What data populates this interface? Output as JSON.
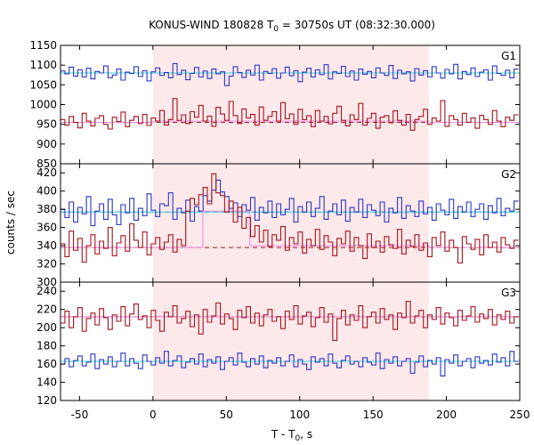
{
  "chart_data": {
    "type": "line",
    "title": {
      "main": "KONUS-WIND 180828 T",
      "sub": "0",
      "rest": " = 30750s UT (08:32:30.000)"
    },
    "xlabel": {
      "main": "T - T",
      "sub": "0",
      "rest": ", s"
    },
    "ylabel": "counts / sec",
    "xlim": [
      -63,
      250
    ],
    "x_ticks": [
      -50,
      0,
      50,
      100,
      150,
      200,
      250
    ],
    "shaded_interval": [
      0,
      188
    ],
    "colors": {
      "shade": "#fde8ea",
      "blue_series": "#2b36c4",
      "red_series": "#a5131c",
      "blue_background": "#40d9d9",
      "red_background": "#e88be0"
    },
    "panels": [
      {
        "label": "G1",
        "ylim": [
          850,
          1150
        ],
        "y_ticks": [
          850,
          900,
          950,
          1000,
          1050,
          1100,
          1150
        ],
        "series": [
          {
            "color": "blue",
            "background_level": 1080,
            "t_start": -63,
            "bin_width": 2.944,
            "values": [
              1085,
              1078,
              1095,
              1072,
              1088,
              1070,
              1092,
              1065,
              1084,
              1080,
              1098,
              1068,
              1075,
              1090,
              1062,
              1082,
              1079,
              1096,
              1071,
              1086,
              1060,
              1083,
              1093,
              1074,
              1081,
              1068,
              1104,
              1076,
              1087,
              1063,
              1079,
              1094,
              1070,
              1085,
              1066,
              1090,
              1078,
              1083,
              1048,
              1072,
              1096,
              1081,
              1069,
              1087,
              1075,
              1100,
              1062,
              1084,
              1079,
              1091,
              1067,
              1080,
              1095,
              1073,
              1086,
              1058,
              1082,
              1092,
              1070,
              1088,
              1076,
              1101,
              1065,
              1083,
              1079,
              1097,
              1071,
              1085,
              1062,
              1090,
              1077,
              1084,
              1068,
              1093,
              1080,
              1074,
              1099,
              1066,
              1087,
              1078,
              1083,
              1060,
              1091,
              1075,
              1086,
              1070,
              1096,
              1080,
              1067,
              1089,
              1078,
              1102,
              1065,
              1084,
              1076,
              1093,
              1071,
              1082,
              1088,
              1062,
              1098,
              1079,
              1074,
              1087,
              1068,
              1090
            ],
            "background_segments": [
              [
                -63,
                250,
                1080
              ]
            ]
          },
          {
            "color": "red",
            "background_level": 955,
            "t_start": -63,
            "bin_width": 2.944,
            "values": [
              962,
              948,
              970,
              955,
              941,
              978,
              958,
              946,
              965,
              972,
              950,
              938,
              968,
              957,
              981,
              944,
              960,
              970,
              952,
              975,
              947,
              966,
              958,
              985,
              948,
              962,
              1015,
              960,
              974,
              952,
              982,
              968,
              998,
              958,
              971,
              945,
              993,
              976,
              960,
              1008,
              972,
              952,
              989,
              966,
              975,
              948,
              994,
              960,
              970,
              982,
              958,
              1005,
              964,
              976,
              950,
              988,
              962,
              972,
              944,
              985,
              958,
              970,
              951,
              978,
              996,
              960,
              946,
              974,
              962,
              1003,
              948,
              965,
              978,
              940,
              968,
              972,
              954,
              984,
              960,
              948,
              975,
              935,
              962,
              970,
              988,
              950,
              966,
              958,
              1010,
              945,
              972,
              962,
              948,
              978,
              955,
              966,
              940,
              973,
              962,
              950,
              985,
              958,
              944,
              968,
              960,
              974
            ],
            "background_segments": [
              [
                -63,
                0,
                955
              ],
              [
                0,
                188,
                958
              ],
              [
                188,
                250,
                955
              ]
            ]
          }
        ]
      },
      {
        "label": "G2",
        "ylim": [
          300,
          430
        ],
        "y_ticks": [
          300,
          320,
          340,
          360,
          380,
          400,
          420
        ],
        "series": [
          {
            "color": "blue",
            "background_level": 377,
            "t_start": -63,
            "bin_width": 2.944,
            "values": [
              380,
              371,
              388,
              366,
              382,
              375,
              394,
              362,
              378,
              386,
              369,
              391,
              374,
              363,
              385,
              376,
              392,
              368,
              381,
              373,
              397,
              379,
              372,
              386,
              384,
              398,
              369,
              381,
              376,
              390,
              367,
              383,
              378,
              395,
              389,
              401,
              412,
              399,
              394,
              381,
              387,
              372,
              385,
              379,
              393,
              368,
              382,
              376,
              389,
              371,
              386,
              374,
              380,
              392,
              366,
              383,
              377,
              388,
              372,
              381,
              394,
              369,
              378,
              386,
              374,
              390,
              367,
              382,
              377,
              391,
              371,
              385,
              379,
              373,
              388,
              366,
              381,
              376,
              393,
              370,
              384,
              378,
              372,
              389,
              375,
              382,
              368,
              386,
              379,
              374,
              391,
              370,
              383,
              377,
              388,
              372,
              380,
              386,
              369,
              384,
              376,
              392,
              373,
              381,
              378,
              389
            ],
            "background_segments": [
              [
                -63,
                250,
                377
              ]
            ]
          },
          {
            "color": "red",
            "background_level": 338,
            "t_start": -63,
            "bin_width": 2.944,
            "values": [
              342,
              328,
              356,
              335,
              348,
              322,
              340,
              352,
              331,
              345,
              337,
              360,
              329,
              343,
              351,
              334,
              364,
              346,
              338,
              355,
              330,
              342,
              349,
              336,
              344,
              352,
              333,
              347,
              340,
              378,
              392,
              385,
              396,
              404,
              386,
              419,
              398,
              395,
              377,
              389,
              366,
              382,
              359,
              371,
              350,
              362,
              344,
              357,
              339,
              352,
              346,
              361,
              335,
              349,
              342,
              355,
              332,
              347,
              340,
              358,
              336,
              351,
              344,
              329,
              348,
              342,
              356,
              334,
              349,
              340,
              326,
              353,
              338,
              345,
              333,
              350,
              341,
              337,
              358,
              331,
              346,
              339,
              352,
              335,
              343,
              328,
              349,
              340,
              355,
              334,
              346,
              338,
              321,
              350,
              342,
              336,
              347,
              330,
              352,
              338,
              344,
              333,
              349,
              341,
              337,
              346
            ],
            "background_segments": [
              [
                -63,
                34,
                338
              ],
              [
                34,
                66,
                378
              ],
              [
                66,
                188,
                340
              ],
              [
                188,
                250,
                338
              ]
            ]
          }
        ]
      },
      {
        "label": "G3",
        "ylim": [
          120,
          250
        ],
        "y_ticks": [
          120,
          140,
          160,
          180,
          200,
          220,
          240
        ],
        "series": [
          {
            "color": "red",
            "background_level": 212,
            "t_start": -63,
            "bin_width": 2.944,
            "values": [
              205,
              218,
              200,
              212,
              222,
              196,
              210,
              216,
              203,
              221,
              211,
              198,
              214,
              207,
              223,
              202,
              215,
              226,
              209,
              213,
              200,
              219,
              208,
              196,
              217,
              212,
              224,
              205,
              210,
              218,
              201,
              214,
              193,
              220,
              206,
              213,
              227,
              204,
              215,
              210,
              198,
              219,
              211,
              223,
              205,
              216,
              202,
              214,
              220,
              207,
              212,
              199,
              218,
              209,
              224,
              204,
              213,
              217,
              201,
              211,
              222,
              206,
              215,
              186,
              210,
              219,
              203,
              214,
              208,
              224,
              200,
              212,
              217,
              205,
              221,
              209,
              214,
              198,
              216,
              211,
              229,
              205,
              213,
              219,
              200,
              214,
              209,
              222,
              204,
              216,
              211,
              202,
              219,
              208,
              213,
              223,
              206,
              215,
              210,
              220,
              203,
              214,
              209,
              218,
              205,
              212
            ],
            "background_segments": [
              [
                -63,
                250,
                212
              ]
            ]
          },
          {
            "color": "blue",
            "background_level": 163,
            "t_start": -63,
            "bin_width": 2.944,
            "values": [
              160,
              166,
              157,
              164,
              169,
              158,
              162,
              171,
              155,
              165,
              160,
              168,
              157,
              163,
              172,
              158,
              166,
              161,
              155,
              170,
              163,
              159,
              167,
              161,
              174,
              158,
              164,
              169,
              156,
              162,
              166,
              160,
              171,
              157,
              165,
              161,
              168,
              154,
              163,
              167,
              159,
              172,
              162,
              157,
              166,
              160,
              169,
              156,
              164,
              161,
              167,
              158,
              163,
              170,
              157,
              165,
              160,
              154,
              168,
              162,
              166,
              158,
              171,
              161,
              156,
              164,
              169,
              160,
              163,
              157,
              167,
              162,
              159,
              172,
              155,
              165,
              161,
              168,
              158,
              163,
              166,
              150,
              162,
              169,
              157,
              164,
              160,
              167,
              147,
              165,
              161,
              170,
              158,
              163,
              166,
              156,
              168,
              161,
              164,
              159,
              171,
              162,
              167,
              158,
              174,
              163
            ],
            "background_segments": [
              [
                -63,
                250,
                163
              ]
            ]
          }
        ]
      }
    ]
  }
}
